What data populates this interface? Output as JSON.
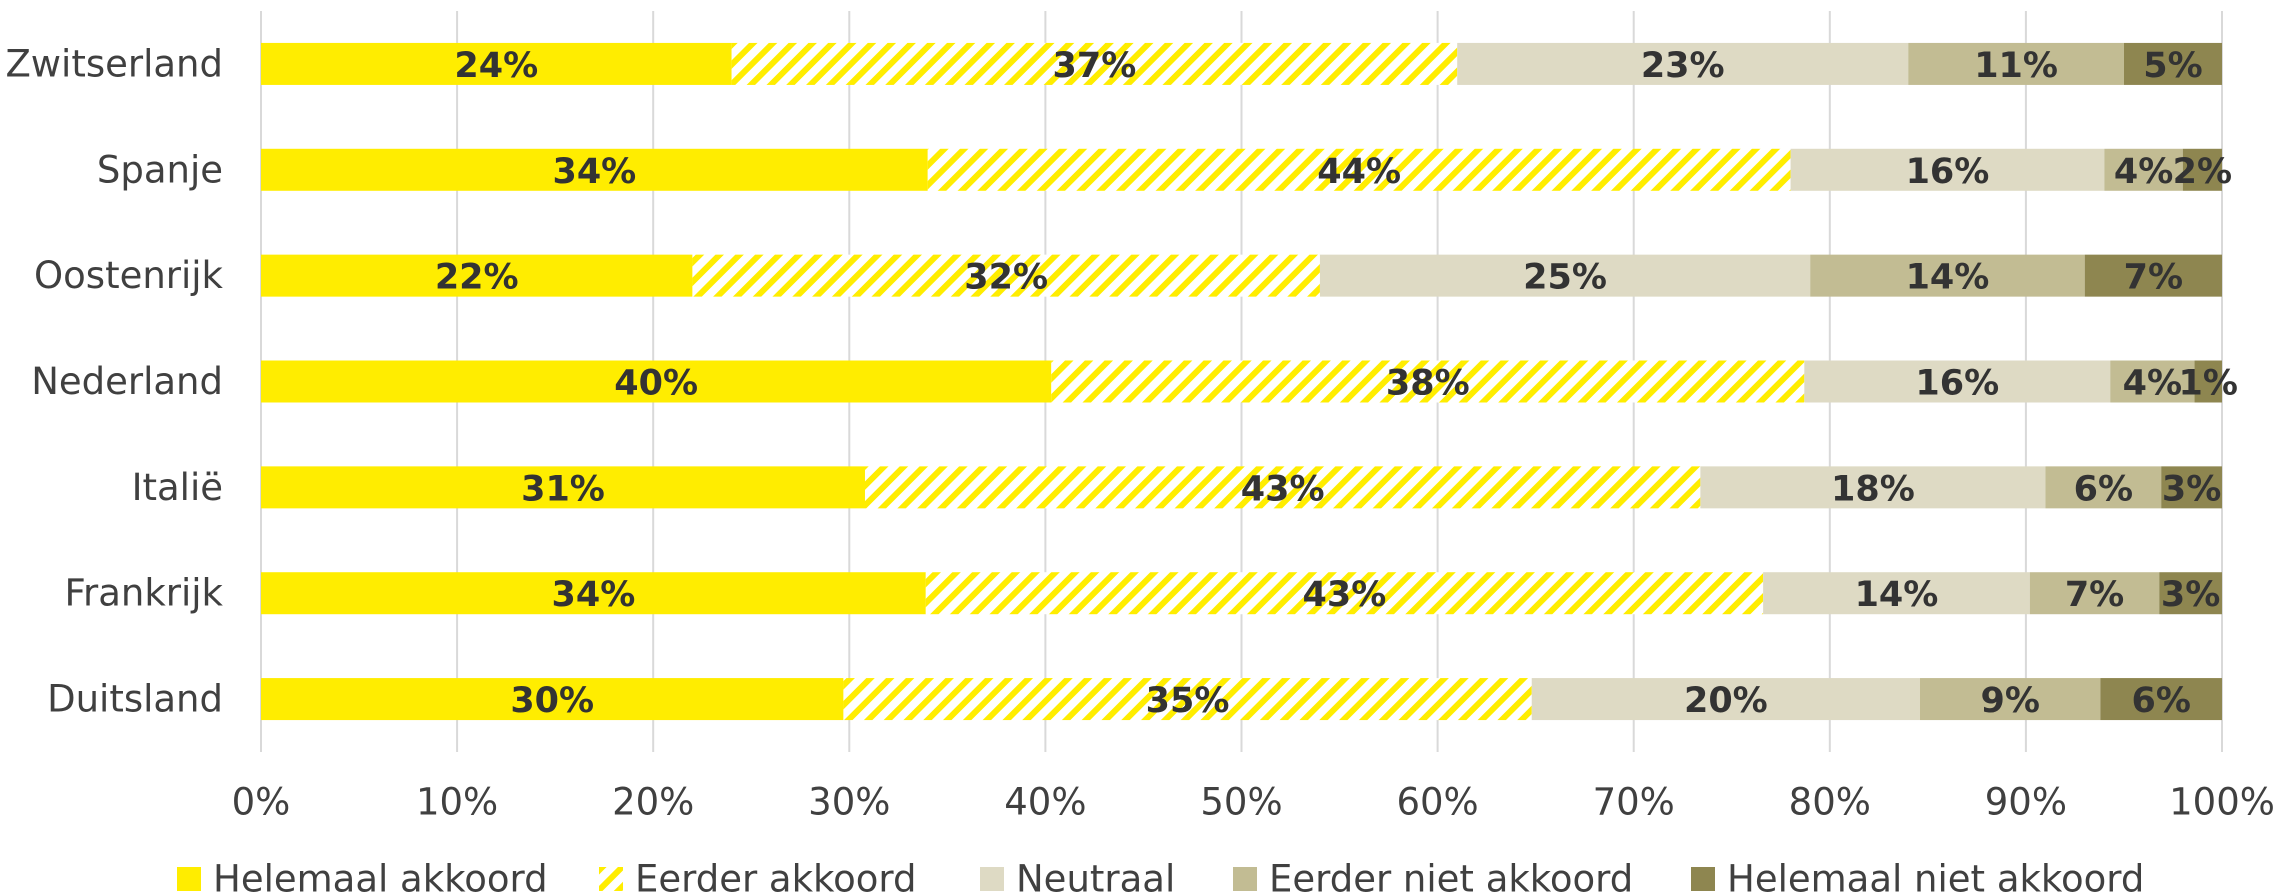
{
  "chart_data": {
    "type": "stacked_barh",
    "categories": [
      "Zwitserland",
      "Spanje",
      "Oostenrijk",
      "Nederland",
      "Italië",
      "Frankrijk",
      "Duitsland"
    ],
    "series": [
      {
        "name": "Helemaal akkoord",
        "color": "#FFED00",
        "values": [
          24,
          34,
          22,
          40.3,
          30.8,
          33.9,
          29.7
        ],
        "value_labels": [
          "24%",
          "34%",
          "22%",
          "40%",
          "31%",
          "34%",
          "30%"
        ]
      },
      {
        "name": "Eerder akkoord",
        "color": "#FFED00",
        "hatch": true,
        "values": [
          37,
          44,
          32,
          38.4,
          42.6,
          42.7,
          35.1
        ],
        "value_labels": [
          "37%",
          "44%",
          "32%",
          "38%",
          "43%",
          "43%",
          "35%"
        ]
      },
      {
        "name": "Neutraal",
        "color": "#DEDAC4",
        "values": [
          23,
          16,
          25,
          15.6,
          17.6,
          13.6,
          19.8
        ],
        "value_labels": [
          "23%",
          "16%",
          "25%",
          "16%",
          "18%",
          "14%",
          "20%"
        ]
      },
      {
        "name": "Eerder niet akkoord",
        "color": "#C2BC93",
        "values": [
          11,
          4,
          14,
          4.3,
          5.9,
          6.6,
          9.2
        ],
        "value_labels": [
          "11%",
          "4%",
          "14%",
          "4%",
          "6%",
          "7%",
          "9%"
        ]
      },
      {
        "name": "Helemaal niet akkoord",
        "color": "#8E8650",
        "values": [
          5,
          2,
          7,
          1.4,
          3.1,
          3.2,
          6.2
        ],
        "value_labels": [
          "5%",
          "2%",
          "7%",
          "1%",
          "3%",
          "3%",
          "6%"
        ]
      }
    ],
    "xlim": [
      0,
      100
    ],
    "xticks": [
      {
        "value": 0,
        "label": "0%"
      },
      {
        "value": 10,
        "label": "10%"
      },
      {
        "value": 20,
        "label": "20%"
      },
      {
        "value": 30,
        "label": "30%"
      },
      {
        "value": 40,
        "label": "40%"
      },
      {
        "value": 50,
        "label": "50%"
      },
      {
        "value": 60,
        "label": "60%"
      },
      {
        "value": 70,
        "label": "70%"
      },
      {
        "value": 80,
        "label": "80%"
      },
      {
        "value": 90,
        "label": "90%"
      },
      {
        "value": 100,
        "label": "100%"
      }
    ],
    "grid": true,
    "legend": "bottom"
  }
}
